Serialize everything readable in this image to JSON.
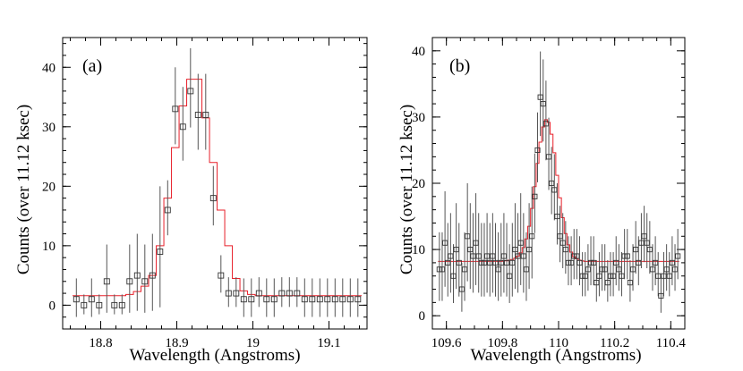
{
  "chart_data": [
    {
      "type": "scatter",
      "panel_label": "(a)",
      "xlabel": "Wavelength (Angstroms)",
      "ylabel": "Counts (over 11.12 ksec)",
      "xlim": [
        18.75,
        19.15
      ],
      "ylim": [
        -4,
        45
      ],
      "xticks": [
        18.8,
        18.9,
        19.0,
        19.1
      ],
      "xtick_labels": [
        "18.8",
        "18.9",
        "19",
        "19.1"
      ],
      "yticks": [
        0,
        10,
        20,
        30,
        40
      ],
      "ytick_labels": [
        "0",
        "10",
        "20",
        "30",
        "40"
      ],
      "legend": "none",
      "grid": false,
      "colors": {
        "data": "#555555",
        "model": "#e8202a",
        "axes": "#000000"
      },
      "series": [
        {
          "kind": "points",
          "x": [
            18.768,
            18.778,
            18.788,
            18.798,
            18.808,
            18.818,
            18.828,
            18.838,
            18.848,
            18.858,
            18.868,
            18.878,
            18.888,
            18.898,
            18.908,
            18.918,
            18.928,
            18.938,
            18.948,
            18.958,
            18.968,
            18.978,
            18.988,
            18.998,
            19.008,
            19.018,
            19.028,
            19.038,
            19.048,
            19.058,
            19.068,
            19.078,
            19.088,
            19.098,
            19.108,
            19.118,
            19.128,
            19.138
          ],
          "y": [
            1,
            0,
            1,
            0,
            4,
            0,
            0,
            4,
            5,
            4,
            5,
            9,
            16,
            33,
            30,
            36,
            32,
            32,
            18,
            5,
            2,
            2,
            1,
            1,
            2,
            1,
            1,
            2,
            2,
            2,
            1,
            1,
            1,
            1,
            1,
            1,
            1,
            1
          ],
          "yerr_high": [
            3.5,
            1.8,
            3.5,
            1.8,
            6.2,
            1.8,
            1.8,
            6.2,
            7.0,
            6.2,
            7.0,
            11.0,
            5.0,
            7.0,
            6.7,
            7.2,
            6.9,
            6.9,
            5.4,
            3.4,
            2.7,
            2.7,
            3.5,
            3.5,
            2.7,
            3.5,
            3.5,
            2.7,
            2.7,
            2.7,
            3.5,
            3.5,
            3.5,
            3.5,
            3.5,
            3.5,
            3.5,
            3.5
          ]
        },
        {
          "kind": "model-step",
          "x": [
            18.763,
            18.773,
            18.783,
            18.793,
            18.803,
            18.813,
            18.823,
            18.833,
            18.843,
            18.853,
            18.863,
            18.873,
            18.883,
            18.893,
            18.903,
            18.913,
            18.923,
            18.933,
            18.943,
            18.953,
            18.963,
            18.973,
            18.983,
            18.993,
            19.003,
            19.013,
            19.023,
            19.033,
            19.043,
            19.053,
            19.063,
            19.073,
            19.083,
            19.093,
            19.103,
            19.113,
            19.123,
            19.133,
            19.143
          ],
          "y": [
            1.6,
            1.6,
            1.6,
            1.6,
            1.6,
            1.6,
            1.6,
            1.8,
            2.3,
            3.2,
            5.0,
            10.0,
            18.0,
            26.5,
            33.5,
            38.0,
            38.0,
            31.5,
            24.0,
            16.0,
            10.0,
            4.5,
            2.4,
            1.8,
            1.6,
            1.6,
            1.6,
            1.6,
            1.6,
            1.6,
            1.6,
            1.6,
            1.6,
            1.6,
            1.6,
            1.6,
            1.6,
            1.6,
            1.6
          ]
        }
      ]
    },
    {
      "type": "scatter",
      "panel_label": "(b)",
      "xlabel": "Wavelength (Angstroms)",
      "ylabel": "Counts (over 11.12 ksec)",
      "xlim": [
        109.55,
        110.45
      ],
      "ylim": [
        -2,
        42
      ],
      "xticks": [
        109.6,
        109.8,
        110.0,
        110.2,
        110.4
      ],
      "xtick_labels": [
        "109.6",
        "109.8",
        "110",
        "110.2",
        "110.4"
      ],
      "yticks": [
        0,
        10,
        20,
        30,
        40
      ],
      "ytick_labels": [
        "0",
        "10",
        "20",
        "30",
        "40"
      ],
      "legend": "none",
      "grid": false,
      "colors": {
        "data": "#555555",
        "model": "#e8202a",
        "axes": "#000000"
      },
      "series": [
        {
          "kind": "points",
          "x": [
            109.575,
            109.585,
            109.595,
            109.605,
            109.615,
            109.625,
            109.635,
            109.645,
            109.655,
            109.665,
            109.675,
            109.685,
            109.695,
            109.705,
            109.715,
            109.725,
            109.735,
            109.745,
            109.755,
            109.765,
            109.775,
            109.785,
            109.795,
            109.805,
            109.815,
            109.825,
            109.835,
            109.845,
            109.855,
            109.865,
            109.875,
            109.885,
            109.895,
            109.905,
            109.915,
            109.925,
            109.935,
            109.945,
            109.955,
            109.965,
            109.975,
            109.985,
            109.995,
            110.005,
            110.015,
            110.025,
            110.035,
            110.045,
            110.055,
            110.065,
            110.075,
            110.085,
            110.095,
            110.105,
            110.115,
            110.125,
            110.135,
            110.145,
            110.155,
            110.165,
            110.175,
            110.185,
            110.195,
            110.205,
            110.215,
            110.225,
            110.235,
            110.245,
            110.255,
            110.265,
            110.275,
            110.285,
            110.295,
            110.305,
            110.315,
            110.325,
            110.335,
            110.345,
            110.355,
            110.365,
            110.375,
            110.385,
            110.395,
            110.405,
            110.415,
            110.425
          ],
          "y": [
            7,
            7,
            11,
            8,
            9,
            6,
            10,
            8,
            4,
            7,
            12,
            10,
            9,
            11,
            9,
            8,
            8,
            9,
            8,
            9,
            8,
            7,
            8,
            9,
            8,
            6,
            8,
            10,
            9,
            11,
            9,
            7,
            10,
            12,
            18,
            25,
            33,
            32,
            29,
            24,
            20,
            19,
            15,
            12,
            11,
            10,
            8,
            8,
            9,
            9,
            8,
            6,
            6,
            7,
            8,
            8,
            5,
            6,
            7,
            7,
            5,
            6,
            6,
            8,
            7,
            6,
            9,
            9,
            5,
            7,
            10,
            8,
            11,
            12,
            11,
            10,
            7,
            8,
            6,
            3,
            6,
            7,
            6,
            8,
            7,
            9
          ],
          "yerr_high": [
            5.6,
            5.6,
            7.8,
            6.0,
            6.5,
            4.8,
            7.0,
            6.0,
            4.0,
            5.6,
            8.0,
            7.0,
            6.5,
            7.5,
            6.5,
            6.0,
            6.0,
            6.5,
            6.0,
            6.5,
            6.0,
            5.6,
            6.0,
            6.5,
            6.0,
            4.8,
            6.0,
            7.0,
            6.5,
            7.5,
            6.5,
            5.6,
            7.0,
            7.5,
            6.5,
            5.7,
            6.9,
            6.7,
            6.5,
            5.9,
            5.5,
            5.4,
            5.0,
            4.6,
            4.5,
            4.3,
            4.0,
            4.0,
            4.1,
            4.1,
            4.0,
            3.6,
            3.6,
            3.8,
            4.0,
            4.0,
            3.4,
            3.6,
            3.8,
            3.8,
            3.4,
            3.6,
            3.6,
            4.0,
            3.8,
            3.6,
            4.1,
            4.1,
            3.4,
            3.8,
            4.3,
            4.0,
            4.5,
            4.6,
            4.5,
            4.3,
            3.8,
            4.0,
            3.6,
            3.0,
            3.6,
            3.8,
            3.6,
            4.0,
            3.8,
            4.1
          ]
        },
        {
          "kind": "model-step",
          "x": [
            109.57,
            109.58,
            109.59,
            109.6,
            109.61,
            109.62,
            109.63,
            109.64,
            109.65,
            109.66,
            109.67,
            109.68,
            109.69,
            109.7,
            109.71,
            109.72,
            109.73,
            109.74,
            109.75,
            109.76,
            109.77,
            109.78,
            109.79,
            109.8,
            109.81,
            109.82,
            109.83,
            109.84,
            109.85,
            109.86,
            109.87,
            109.88,
            109.89,
            109.9,
            109.91,
            109.92,
            109.93,
            109.94,
            109.95,
            109.96,
            109.97,
            109.98,
            109.99,
            110.0,
            110.01,
            110.02,
            110.03,
            110.04,
            110.05,
            110.06,
            110.07,
            110.08,
            110.09,
            110.1,
            110.11,
            110.12,
            110.13,
            110.14,
            110.15,
            110.16,
            110.17,
            110.18,
            110.19,
            110.2,
            110.21,
            110.22,
            110.23,
            110.24,
            110.25,
            110.26,
            110.27,
            110.28,
            110.29,
            110.3,
            110.31,
            110.32,
            110.33,
            110.34,
            110.35,
            110.36,
            110.37,
            110.38,
            110.39,
            110.4,
            110.41,
            110.42,
            110.43
          ],
          "y": [
            8.2,
            8.2,
            8.2,
            8.2,
            8.2,
            8.2,
            8.2,
            8.2,
            8.2,
            8.2,
            8.2,
            8.2,
            8.2,
            8.2,
            8.2,
            8.2,
            8.2,
            8.2,
            8.2,
            8.2,
            8.2,
            8.2,
            8.2,
            8.3,
            8.3,
            8.4,
            8.5,
            8.7,
            9.0,
            9.5,
            10.3,
            11.6,
            13.5,
            16.2,
            19.5,
            23.0,
            26.2,
            28.5,
            29.6,
            29.2,
            27.4,
            24.6,
            21.2,
            17.8,
            14.8,
            12.4,
            10.7,
            9.6,
            8.9,
            8.6,
            8.4,
            8.3,
            8.2,
            8.2,
            8.2,
            8.2,
            8.2,
            8.2,
            8.2,
            8.2,
            8.2,
            8.2,
            8.2,
            8.2,
            8.2,
            8.2,
            8.2,
            8.2,
            8.2,
            8.2,
            8.2,
            8.2,
            8.2,
            8.2,
            8.2,
            8.2,
            8.2,
            8.2,
            8.2,
            8.2,
            8.2,
            8.2,
            8.2,
            8.2,
            8.2,
            8.2,
            8.2
          ]
        }
      ]
    }
  ]
}
